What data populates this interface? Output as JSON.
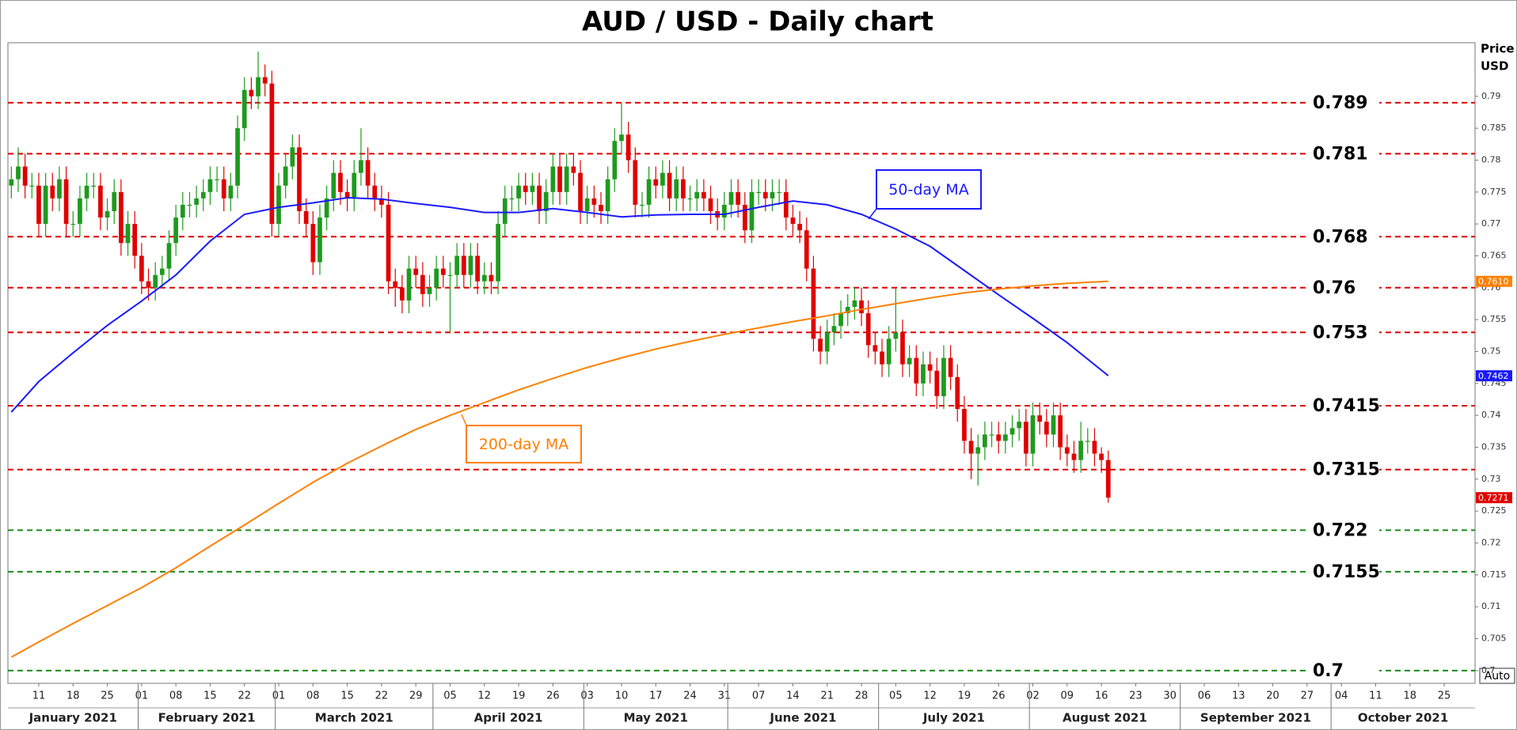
{
  "chart_data": {
    "type": "candlestick",
    "title": "AUD / USD - Daily chart",
    "y_axis_label": [
      "Price",
      "USD"
    ],
    "up_color": "#1e9a1e",
    "down_color": "#e00000",
    "x": [
      "2021-01-05",
      "2021-01-06",
      "2021-01-07",
      "2021-01-08",
      "2021-01-11",
      "2021-01-12",
      "2021-01-13",
      "2021-01-14",
      "2021-01-15",
      "2021-01-18",
      "2021-01-19",
      "2021-01-20",
      "2021-01-21",
      "2021-01-22",
      "2021-01-25",
      "2021-01-26",
      "2021-01-27",
      "2021-01-28",
      "2021-01-29",
      "2021-02-01",
      "2021-02-02",
      "2021-02-03",
      "2021-02-04",
      "2021-02-05",
      "2021-02-08",
      "2021-02-09",
      "2021-02-10",
      "2021-02-11",
      "2021-02-12",
      "2021-02-15",
      "2021-02-16",
      "2021-02-17",
      "2021-02-18",
      "2021-02-19",
      "2021-02-22",
      "2021-02-23",
      "2021-02-24",
      "2021-02-25",
      "2021-02-26",
      "2021-03-01",
      "2021-03-02",
      "2021-03-03",
      "2021-03-04",
      "2021-03-05",
      "2021-03-08",
      "2021-03-09",
      "2021-03-10",
      "2021-03-11",
      "2021-03-12",
      "2021-03-15",
      "2021-03-16",
      "2021-03-17",
      "2021-03-18",
      "2021-03-19",
      "2021-03-22",
      "2021-03-23",
      "2021-03-24",
      "2021-03-25",
      "2021-03-26",
      "2021-03-29",
      "2021-03-30",
      "2021-03-31",
      "2021-04-01",
      "2021-04-02",
      "2021-04-05",
      "2021-04-06",
      "2021-04-07",
      "2021-04-08",
      "2021-04-09",
      "2021-04-12",
      "2021-04-13",
      "2021-04-14",
      "2021-04-15",
      "2021-04-16",
      "2021-04-19",
      "2021-04-20",
      "2021-04-21",
      "2021-04-22",
      "2021-04-23",
      "2021-04-26",
      "2021-04-27",
      "2021-04-28",
      "2021-04-29",
      "2021-04-30",
      "2021-05-03",
      "2021-05-04",
      "2021-05-05",
      "2021-05-06",
      "2021-05-07",
      "2021-05-10",
      "2021-05-11",
      "2021-05-12",
      "2021-05-13",
      "2021-05-14",
      "2021-05-17",
      "2021-05-18",
      "2021-05-19",
      "2021-05-20",
      "2021-05-21",
      "2021-05-24",
      "2021-05-25",
      "2021-05-26",
      "2021-05-27",
      "2021-05-28",
      "2021-05-31",
      "2021-06-01",
      "2021-06-02",
      "2021-06-03",
      "2021-06-04",
      "2021-06-07",
      "2021-06-08",
      "2021-06-09",
      "2021-06-10",
      "2021-06-11",
      "2021-06-14",
      "2021-06-15",
      "2021-06-16",
      "2021-06-17",
      "2021-06-18",
      "2021-06-21",
      "2021-06-22",
      "2021-06-23",
      "2021-06-24",
      "2021-06-25",
      "2021-06-28",
      "2021-06-29",
      "2021-06-30",
      "2021-07-01",
      "2021-07-02",
      "2021-07-05",
      "2021-07-06",
      "2021-07-07",
      "2021-07-08",
      "2021-07-09",
      "2021-07-12",
      "2021-07-13",
      "2021-07-14",
      "2021-07-15",
      "2021-07-16",
      "2021-07-19",
      "2021-07-20",
      "2021-07-21",
      "2021-07-22",
      "2021-07-23",
      "2021-07-26",
      "2021-07-27",
      "2021-07-28",
      "2021-07-29",
      "2021-07-30",
      "2021-08-02",
      "2021-08-03",
      "2021-08-04",
      "2021-08-05",
      "2021-08-06",
      "2021-08-09",
      "2021-08-10",
      "2021-08-11",
      "2021-08-12",
      "2021-08-13",
      "2021-08-16",
      "2021-08-17"
    ],
    "open": [
      0.776,
      0.777,
      0.779,
      0.776,
      0.776,
      0.77,
      0.776,
      0.774,
      0.777,
      0.77,
      0.77,
      0.774,
      0.776,
      0.776,
      0.771,
      0.772,
      0.775,
      0.767,
      0.77,
      0.765,
      0.761,
      0.76,
      0.762,
      0.763,
      0.767,
      0.771,
      0.773,
      0.773,
      0.774,
      0.775,
      0.777,
      0.777,
      0.774,
      0.776,
      0.785,
      0.791,
      0.79,
      0.793,
      0.792,
      0.77,
      0.776,
      0.779,
      0.782,
      0.772,
      0.77,
      0.764,
      0.771,
      0.774,
      0.778,
      0.775,
      0.774,
      0.778,
      0.78,
      0.776,
      0.774,
      0.773,
      0.761,
      0.76,
      0.758,
      0.763,
      0.762,
      0.759,
      0.76,
      0.763,
      0.762,
      0.762,
      0.765,
      0.762,
      0.765,
      0.761,
      0.762,
      0.761,
      0.77,
      0.774,
      0.774,
      0.776,
      0.775,
      0.776,
      0.772,
      0.775,
      0.779,
      0.775,
      0.779,
      0.778,
      0.772,
      0.774,
      0.773,
      0.772,
      0.777,
      0.783,
      0.784,
      0.78,
      0.773,
      0.773,
      0.777,
      0.776,
      0.778,
      0.774,
      0.777,
      0.774,
      0.774,
      0.775,
      0.774,
      0.772,
      0.771,
      0.773,
      0.775,
      0.773,
      0.769,
      0.775,
      0.775,
      0.774,
      0.775,
      0.775,
      0.771,
      0.77,
      0.769,
      0.763,
      0.752,
      0.75,
      0.753,
      0.754,
      0.756,
      0.757,
      0.758,
      0.756,
      0.751,
      0.75,
      0.748,
      0.752,
      0.753,
      0.748,
      0.749,
      0.745,
      0.748,
      0.747,
      0.743,
      0.749,
      0.746,
      0.741,
      0.736,
      0.734,
      0.735,
      0.737,
      0.737,
      0.736,
      0.737,
      0.738,
      0.739,
      0.734,
      0.74,
      0.739,
      0.737,
      0.74,
      0.735,
      0.734,
      0.733,
      0.736,
      0.736,
      0.734,
      0.733
    ],
    "high": [
      0.779,
      0.782,
      0.781,
      0.778,
      0.778,
      0.778,
      0.778,
      0.779,
      0.779,
      0.772,
      0.776,
      0.778,
      0.778,
      0.778,
      0.774,
      0.777,
      0.777,
      0.772,
      0.772,
      0.767,
      0.763,
      0.764,
      0.765,
      0.769,
      0.773,
      0.775,
      0.775,
      0.776,
      0.777,
      0.779,
      0.779,
      0.779,
      0.778,
      0.787,
      0.793,
      0.793,
      0.797,
      0.795,
      0.794,
      0.778,
      0.781,
      0.784,
      0.784,
      0.774,
      0.772,
      0.773,
      0.776,
      0.78,
      0.78,
      0.777,
      0.78,
      0.785,
      0.782,
      0.778,
      0.776,
      0.775,
      0.763,
      0.762,
      0.765,
      0.765,
      0.764,
      0.762,
      0.765,
      0.765,
      0.764,
      0.767,
      0.767,
      0.767,
      0.767,
      0.764,
      0.764,
      0.772,
      0.776,
      0.776,
      0.778,
      0.778,
      0.778,
      0.778,
      0.777,
      0.781,
      0.781,
      0.781,
      0.781,
      0.78,
      0.776,
      0.776,
      0.775,
      0.779,
      0.785,
      0.789,
      0.786,
      0.782,
      0.775,
      0.779,
      0.779,
      0.78,
      0.78,
      0.779,
      0.779,
      0.776,
      0.777,
      0.777,
      0.776,
      0.774,
      0.775,
      0.777,
      0.777,
      0.775,
      0.777,
      0.777,
      0.777,
      0.777,
      0.777,
      0.777,
      0.773,
      0.772,
      0.771,
      0.765,
      0.754,
      0.755,
      0.756,
      0.758,
      0.759,
      0.76,
      0.76,
      0.758,
      0.753,
      0.752,
      0.754,
      0.76,
      0.755,
      0.751,
      0.751,
      0.75,
      0.75,
      0.749,
      0.751,
      0.751,
      0.748,
      0.743,
      0.738,
      0.737,
      0.739,
      0.739,
      0.739,
      0.739,
      0.74,
      0.741,
      0.741,
      0.742,
      0.742,
      0.741,
      0.742,
      0.742,
      0.737,
      0.736,
      0.739,
      0.738,
      0.738,
      0.735,
      0.7345
    ],
    "low": [
      0.774,
      0.775,
      0.774,
      0.774,
      0.768,
      0.768,
      0.772,
      0.772,
      0.768,
      0.768,
      0.768,
      0.772,
      0.774,
      0.769,
      0.769,
      0.77,
      0.765,
      0.765,
      0.763,
      0.759,
      0.758,
      0.758,
      0.76,
      0.761,
      0.765,
      0.769,
      0.771,
      0.771,
      0.772,
      0.773,
      0.775,
      0.772,
      0.772,
      0.774,
      0.783,
      0.788,
      0.788,
      0.79,
      0.768,
      0.768,
      0.774,
      0.777,
      0.77,
      0.768,
      0.762,
      0.762,
      0.769,
      0.772,
      0.773,
      0.772,
      0.772,
      0.776,
      0.774,
      0.772,
      0.771,
      0.759,
      0.757,
      0.756,
      0.756,
      0.76,
      0.757,
      0.757,
      0.758,
      0.76,
      0.753,
      0.76,
      0.76,
      0.76,
      0.759,
      0.759,
      0.759,
      0.759,
      0.768,
      0.772,
      0.772,
      0.773,
      0.773,
      0.77,
      0.77,
      0.773,
      0.773,
      0.773,
      0.776,
      0.77,
      0.77,
      0.771,
      0.77,
      0.77,
      0.775,
      0.781,
      0.778,
      0.771,
      0.771,
      0.771,
      0.774,
      0.774,
      0.772,
      0.772,
      0.772,
      0.772,
      0.772,
      0.772,
      0.77,
      0.769,
      0.769,
      0.771,
      0.771,
      0.767,
      0.767,
      0.773,
      0.772,
      0.772,
      0.773,
      0.769,
      0.768,
      0.767,
      0.761,
      0.75,
      0.748,
      0.748,
      0.751,
      0.752,
      0.754,
      0.755,
      0.754,
      0.749,
      0.748,
      0.746,
      0.746,
      0.75,
      0.746,
      0.746,
      0.743,
      0.743,
      0.745,
      0.741,
      0.741,
      0.744,
      0.739,
      0.734,
      0.73,
      0.729,
      0.733,
      0.735,
      0.734,
      0.734,
      0.735,
      0.736,
      0.732,
      0.732,
      0.737,
      0.735,
      0.735,
      0.733,
      0.732,
      0.731,
      0.731,
      0.734,
      0.732,
      0.731,
      0.7263
    ],
    "close": [
      0.777,
      0.779,
      0.776,
      0.776,
      0.77,
      0.776,
      0.774,
      0.777,
      0.77,
      0.77,
      0.774,
      0.776,
      0.776,
      0.771,
      0.772,
      0.775,
      0.767,
      0.77,
      0.765,
      0.761,
      0.76,
      0.762,
      0.763,
      0.767,
      0.771,
      0.773,
      0.773,
      0.774,
      0.775,
      0.777,
      0.777,
      0.774,
      0.776,
      0.785,
      0.791,
      0.79,
      0.793,
      0.792,
      0.77,
      0.776,
      0.779,
      0.782,
      0.772,
      0.77,
      0.764,
      0.771,
      0.774,
      0.778,
      0.775,
      0.774,
      0.778,
      0.78,
      0.776,
      0.774,
      0.773,
      0.761,
      0.76,
      0.758,
      0.763,
      0.762,
      0.759,
      0.76,
      0.763,
      0.762,
      0.762,
      0.765,
      0.762,
      0.765,
      0.761,
      0.762,
      0.761,
      0.77,
      0.774,
      0.774,
      0.776,
      0.775,
      0.776,
      0.772,
      0.775,
      0.779,
      0.775,
      0.779,
      0.778,
      0.772,
      0.774,
      0.773,
      0.772,
      0.777,
      0.783,
      0.784,
      0.78,
      0.773,
      0.773,
      0.777,
      0.776,
      0.778,
      0.774,
      0.777,
      0.774,
      0.774,
      0.775,
      0.774,
      0.772,
      0.771,
      0.773,
      0.775,
      0.773,
      0.769,
      0.775,
      0.775,
      0.774,
      0.775,
      0.775,
      0.771,
      0.77,
      0.769,
      0.763,
      0.752,
      0.75,
      0.753,
      0.754,
      0.756,
      0.757,
      0.758,
      0.756,
      0.751,
      0.75,
      0.748,
      0.752,
      0.753,
      0.748,
      0.749,
      0.745,
      0.748,
      0.747,
      0.743,
      0.749,
      0.746,
      0.741,
      0.736,
      0.734,
      0.735,
      0.737,
      0.737,
      0.736,
      0.737,
      0.738,
      0.739,
      0.734,
      0.74,
      0.739,
      0.737,
      0.74,
      0.735,
      0.734,
      0.733,
      0.736,
      0.736,
      0.734,
      0.733,
      0.7271
    ],
    "xlim": [
      "2021-01-05",
      "2021-10-29"
    ],
    "xticks": [
      {
        "value": "2021-01-11",
        "label": "11"
      },
      {
        "value": "2021-01-18",
        "label": "18"
      },
      {
        "value": "2021-01-25",
        "label": "25"
      },
      {
        "value": "2021-02-01",
        "label": "01"
      },
      {
        "value": "2021-02-08",
        "label": "08"
      },
      {
        "value": "2021-02-15",
        "label": "15"
      },
      {
        "value": "2021-02-22",
        "label": "22"
      },
      {
        "value": "2021-03-01",
        "label": "01"
      },
      {
        "value": "2021-03-08",
        "label": "08"
      },
      {
        "value": "2021-03-15",
        "label": "15"
      },
      {
        "value": "2021-03-22",
        "label": "22"
      },
      {
        "value": "2021-03-29",
        "label": "29"
      },
      {
        "value": "2021-04-05",
        "label": "05"
      },
      {
        "value": "2021-04-12",
        "label": "12"
      },
      {
        "value": "2021-04-19",
        "label": "19"
      },
      {
        "value": "2021-04-26",
        "label": "26"
      },
      {
        "value": "2021-05-03",
        "label": "03"
      },
      {
        "value": "2021-05-10",
        "label": "10"
      },
      {
        "value": "2021-05-17",
        "label": "17"
      },
      {
        "value": "2021-05-24",
        "label": "24"
      },
      {
        "value": "2021-05-31",
        "label": "31"
      },
      {
        "value": "2021-06-07",
        "label": "07"
      },
      {
        "value": "2021-06-14",
        "label": "14"
      },
      {
        "value": "2021-06-21",
        "label": "21"
      },
      {
        "value": "2021-06-28",
        "label": "28"
      },
      {
        "value": "2021-07-05",
        "label": "05"
      },
      {
        "value": "2021-07-12",
        "label": "12"
      },
      {
        "value": "2021-07-19",
        "label": "19"
      },
      {
        "value": "2021-07-26",
        "label": "26"
      },
      {
        "value": "2021-08-02",
        "label": "02"
      },
      {
        "value": "2021-08-09",
        "label": "09"
      },
      {
        "value": "2021-08-16",
        "label": "16"
      },
      {
        "value": "2021-08-23",
        "label": "23"
      },
      {
        "value": "2021-08-30",
        "label": "30"
      },
      {
        "value": "2021-09-06",
        "label": "06"
      },
      {
        "value": "2021-09-13",
        "label": "13"
      },
      {
        "value": "2021-09-20",
        "label": "20"
      },
      {
        "value": "2021-09-27",
        "label": "27"
      },
      {
        "value": "2021-10-04",
        "label": "04"
      },
      {
        "value": "2021-10-11",
        "label": "11"
      },
      {
        "value": "2021-10-18",
        "label": "18"
      },
      {
        "value": "2021-10-25",
        "label": "25"
      }
    ],
    "months": [
      "January 2021",
      "February 2021",
      "March 2021",
      "April 2021",
      "May 2021",
      "June 2021",
      "July 2021",
      "August 2021",
      "September 2021",
      "October 2021"
    ],
    "ylim": [
      0.698,
      0.7984
    ],
    "yticks": [
      0.7,
      0.705,
      0.71,
      0.715,
      0.72,
      0.725,
      0.73,
      0.735,
      0.74,
      0.745,
      0.75,
      0.755,
      0.76,
      0.765,
      0.77,
      0.775,
      0.78,
      0.785,
      0.79
    ],
    "series": [
      {
        "name": "50-day MA",
        "color": "#1a1aff",
        "x": [
          "2021-01-05",
          "2021-01-11",
          "2021-01-18",
          "2021-01-25",
          "2021-02-01",
          "2021-02-08",
          "2021-02-15",
          "2021-02-22",
          "2021-03-01",
          "2021-03-08",
          "2021-03-15",
          "2021-03-22",
          "2021-03-29",
          "2021-04-05",
          "2021-04-12",
          "2021-04-19",
          "2021-04-26",
          "2021-05-03",
          "2021-05-10",
          "2021-05-17",
          "2021-05-24",
          "2021-05-31",
          "2021-06-07",
          "2021-06-14",
          "2021-06-21",
          "2021-06-28",
          "2021-07-05",
          "2021-07-12",
          "2021-07-19",
          "2021-07-26",
          "2021-08-02",
          "2021-08-09",
          "2021-08-17"
        ],
        "values": [
          0.7405,
          0.7453,
          0.7498,
          0.7541,
          0.7579,
          0.762,
          0.7673,
          0.7715,
          0.7726,
          0.7733,
          0.7741,
          0.7739,
          0.7732,
          0.7726,
          0.7718,
          0.7718,
          0.7724,
          0.7718,
          0.7711,
          0.7714,
          0.7715,
          0.7715,
          0.7726,
          0.7736,
          0.773,
          0.7715,
          0.7692,
          0.7665,
          0.7627,
          0.7589,
          0.7552,
          0.7514,
          0.7462
        ]
      },
      {
        "name": "200-day MA",
        "color": "#ff8000",
        "x": [
          "2021-01-05",
          "2021-01-11",
          "2021-01-18",
          "2021-01-25",
          "2021-02-01",
          "2021-02-08",
          "2021-02-15",
          "2021-02-22",
          "2021-03-01",
          "2021-03-08",
          "2021-03-15",
          "2021-03-22",
          "2021-03-29",
          "2021-04-05",
          "2021-04-12",
          "2021-04-19",
          "2021-04-26",
          "2021-05-03",
          "2021-05-10",
          "2021-05-17",
          "2021-05-24",
          "2021-05-31",
          "2021-06-07",
          "2021-06-14",
          "2021-06-21",
          "2021-06-28",
          "2021-07-05",
          "2021-07-12",
          "2021-07-19",
          "2021-07-26",
          "2021-08-02",
          "2021-08-09",
          "2021-08-17"
        ],
        "values": [
          0.7021,
          0.7045,
          0.7074,
          0.7102,
          0.713,
          0.7161,
          0.7195,
          0.7228,
          0.7262,
          0.7295,
          0.7325,
          0.7352,
          0.7378,
          0.74,
          0.742,
          0.744,
          0.7458,
          0.7475,
          0.749,
          0.7504,
          0.7516,
          0.7527,
          0.7537,
          0.7547,
          0.7556,
          0.7566,
          0.7575,
          0.7584,
          0.7592,
          0.7598,
          0.7603,
          0.7607,
          0.761
        ]
      }
    ],
    "levels": [
      {
        "value": 0.789,
        "color": "#e00000"
      },
      {
        "value": 0.781,
        "color": "#e00000"
      },
      {
        "value": 0.768,
        "color": "#e00000"
      },
      {
        "value": 0.76,
        "color": "#e00000"
      },
      {
        "value": 0.753,
        "color": "#e00000"
      },
      {
        "value": 0.7415,
        "color": "#e00000"
      },
      {
        "value": 0.7315,
        "color": "#e00000"
      },
      {
        "value": 0.722,
        "color": "#1a8a1a"
      },
      {
        "value": 0.7155,
        "color": "#1a8a1a"
      },
      {
        "value": 0.7,
        "color": "#1a8a1a"
      }
    ],
    "price_tags": [
      {
        "value": 0.761,
        "label": "0.7610",
        "color": "#ff8000"
      },
      {
        "value": 0.7462,
        "label": "0.7462",
        "color": "#1a1aff"
      },
      {
        "value": 0.7271,
        "label": "0.7271",
        "color": "#e00000"
      }
    ],
    "button": "Auto"
  }
}
